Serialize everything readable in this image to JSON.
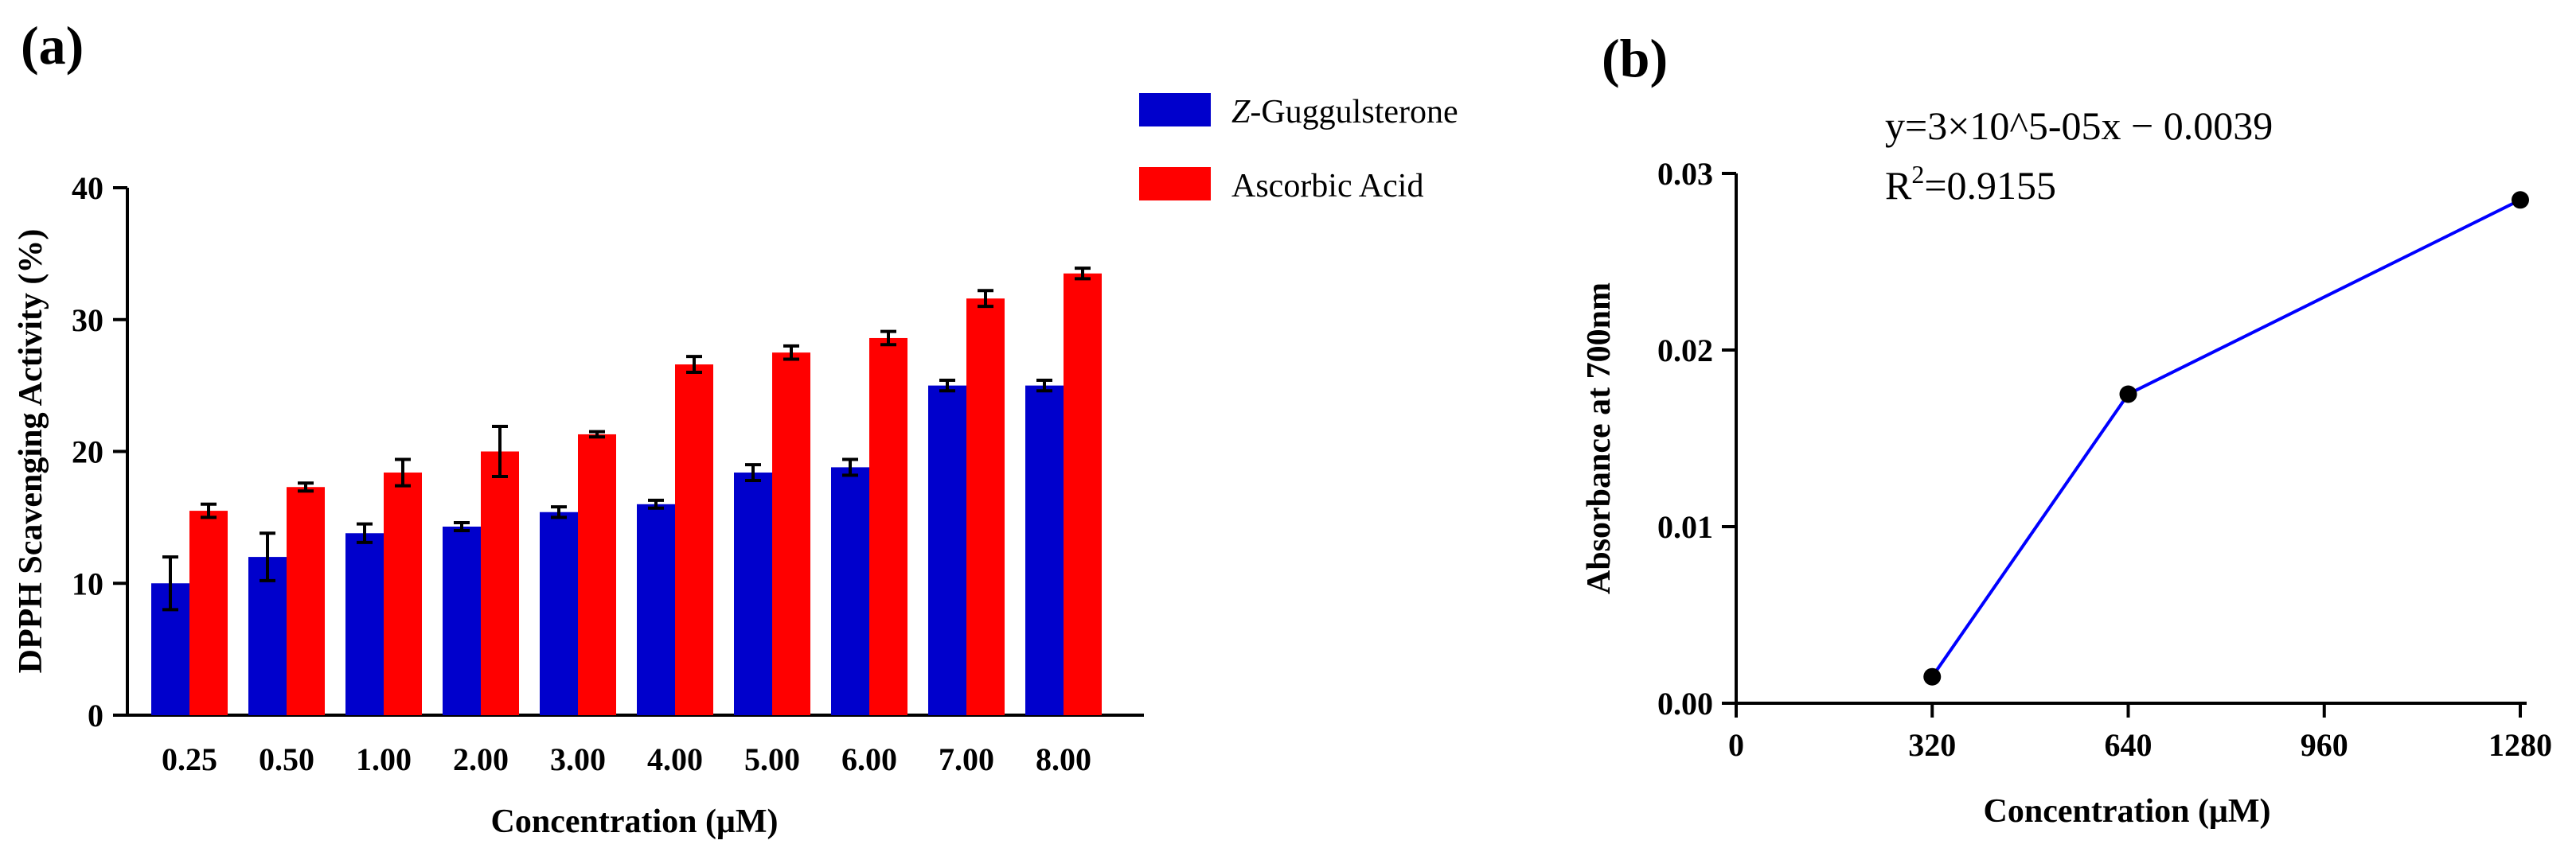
{
  "chart_data": [
    {
      "panel_label": "(a)",
      "type": "bar",
      "xlabel": "Concentration (μM)",
      "ylabel": "DPPH Scavenging Activity (%)",
      "ylim": [
        0,
        40
      ],
      "yticks": [
        "0",
        "10",
        "20",
        "30",
        "40"
      ],
      "categories": [
        "0.25",
        "0.50",
        "1.00",
        "2.00",
        "3.00",
        "4.00",
        "5.00",
        "6.00",
        "7.00",
        "8.00"
      ],
      "series": [
        {
          "name_italic": "Z",
          "name_rest": "-Guggulsterone",
          "color": "#0000cc",
          "values": [
            10.0,
            12.0,
            13.8,
            14.3,
            15.4,
            16.0,
            18.4,
            18.8,
            25.0,
            25.0
          ],
          "errors": [
            2.0,
            1.8,
            0.7,
            0.3,
            0.4,
            0.3,
            0.6,
            0.6,
            0.4,
            0.4
          ]
        },
        {
          "name": "Ascorbic Acid",
          "color": "#ff0000",
          "values": [
            15.5,
            17.3,
            18.4,
            20.0,
            21.3,
            26.6,
            27.5,
            28.6,
            31.6,
            33.5
          ],
          "errors": [
            0.5,
            0.3,
            1.0,
            1.9,
            0.2,
            0.6,
            0.5,
            0.5,
            0.6,
            0.4
          ]
        }
      ],
      "legend_position": "top-right"
    },
    {
      "panel_label": "(b)",
      "type": "line",
      "xlabel": "Concentration (μM)",
      "ylabel": "Absorbance at 700nm",
      "xlim": [
        0,
        1280
      ],
      "ylim": [
        0,
        0.03
      ],
      "xticks": [
        0,
        320,
        640,
        960,
        1280
      ],
      "xtick_labels": [
        "0",
        "320",
        "640",
        "960",
        "1280"
      ],
      "yticks": [
        0,
        0.01,
        0.02,
        0.03
      ],
      "ytick_labels": [
        "0.00",
        "0.01",
        "0.02",
        "0.03"
      ],
      "series": [
        {
          "name": "Absorbance",
          "color": "#0000ff",
          "x": [
            320,
            640,
            1280
          ],
          "y": [
            0.0015,
            0.0175,
            0.0285
          ]
        }
      ],
      "equation": "y=3×10^5-05x − 0.0039",
      "r2_prefix": "R",
      "r2_sup": "2",
      "r2_value": "=0.9155"
    }
  ]
}
